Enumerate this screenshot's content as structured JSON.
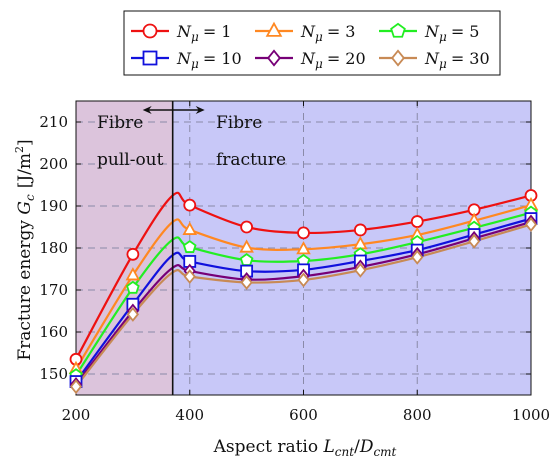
{
  "chart_data": {
    "type": "line",
    "xlabel_text": "Aspect ratio ",
    "xlabel_math": "L",
    "xlabel_sub1": "cnt",
    "xlabel_slash": "/",
    "xlabel_math2": "D",
    "xlabel_sub2": "cmt",
    "ylabel_text": "Fracture energy ",
    "ylabel_math": "G",
    "ylabel_sub": "c",
    "ylabel_unit": "[J/m",
    "ylabel_unit_sup": "2",
    "ylabel_unit_close": "]",
    "xlim": [
      200,
      1000
    ],
    "ylim": [
      145,
      215
    ],
    "xticks": [
      200,
      400,
      600,
      800,
      1000
    ],
    "yticks": [
      150,
      160,
      170,
      180,
      190,
      200,
      210
    ],
    "grid": true,
    "transition_x": 370,
    "regions": {
      "left_line1": "Fibre",
      "left_line2": "pull-out",
      "right_line1": "Fibre",
      "right_line2": "fracture"
    },
    "colors": {
      "left_region": "#dcc4dc",
      "right_region": "#c8c8f8"
    },
    "legend_position": "top",
    "legend_prefix": "N",
    "legend_sub": "μ",
    "series": [
      {
        "name": "= 1",
        "color": "#ee1111",
        "marker": "circle",
        "x": [
          200,
          300,
          370,
          400,
          500,
          600,
          700,
          800,
          900,
          1000
        ],
        "y": [
          153.5,
          178.5,
          192.5,
          190.2,
          185.0,
          183.6,
          184.3,
          186.3,
          189.1,
          192.5
        ]
      },
      {
        "name": "= 3",
        "color": "#ff8822",
        "marker": "triangle",
        "x": [
          200,
          300,
          370,
          400,
          500,
          600,
          700,
          800,
          900,
          1000
        ],
        "y": [
          151.2,
          173.5,
          186.2,
          184.3,
          180.1,
          179.7,
          180.9,
          183.1,
          186.5,
          190.2
        ]
      },
      {
        "name": "= 5",
        "color": "#22ee22",
        "marker": "pentagon",
        "x": [
          200,
          300,
          370,
          400,
          500,
          600,
          700,
          800,
          900,
          1000
        ],
        "y": [
          149.7,
          170.5,
          182.0,
          180.2,
          177.1,
          176.9,
          178.5,
          181.4,
          184.8,
          188.4
        ]
      },
      {
        "name": "= 10",
        "color": "#1111dd",
        "marker": "square",
        "x": [
          200,
          300,
          370,
          400,
          500,
          600,
          700,
          800,
          900,
          1000
        ],
        "y": [
          148.2,
          166.6,
          178.3,
          176.8,
          174.5,
          174.8,
          176.9,
          179.5,
          183.2,
          187.0
        ]
      },
      {
        "name": "= 20",
        "color": "#770077",
        "marker": "diamond",
        "x": [
          200,
          300,
          370,
          400,
          500,
          600,
          700,
          800,
          900,
          1000
        ],
        "y": [
          147.5,
          165.0,
          175.3,
          174.5,
          172.5,
          173.3,
          175.5,
          178.5,
          182.3,
          186.2
        ]
      },
      {
        "name": "= 30",
        "color": "#c88a55",
        "marker": "diamond",
        "x": [
          200,
          300,
          370,
          400,
          500,
          600,
          700,
          800,
          900,
          1000
        ],
        "y": [
          147.0,
          164.2,
          174.2,
          173.2,
          171.8,
          172.4,
          174.7,
          177.8,
          181.6,
          185.6
        ]
      }
    ]
  }
}
